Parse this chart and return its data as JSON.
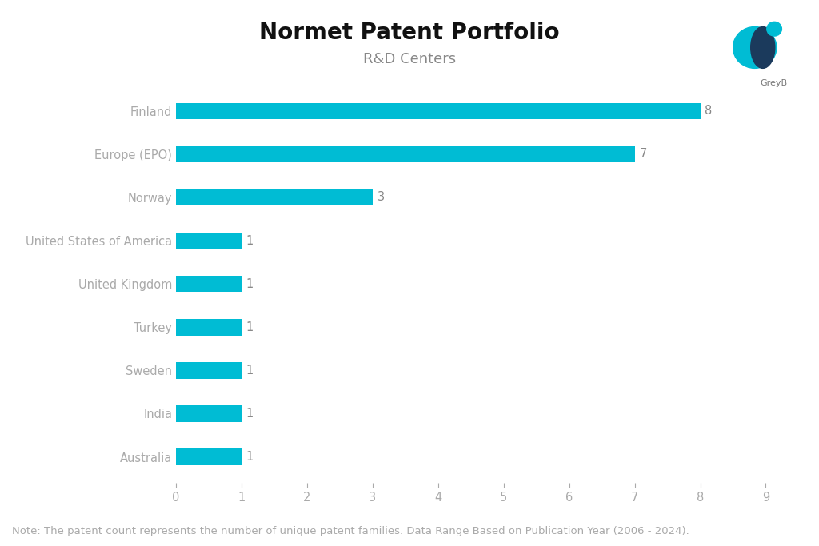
{
  "title": "Normet Patent Portfolio",
  "subtitle": "R&D Centers",
  "categories": [
    "Finland",
    "Europe (EPO)",
    "Norway",
    "United States of America",
    "United Kingdom",
    "Turkey",
    "Sweden",
    "India",
    "Australia"
  ],
  "values": [
    8,
    7,
    3,
    1,
    1,
    1,
    1,
    1,
    1
  ],
  "bar_color": "#00BCD4",
  "label_color": "#aaaaaa",
  "title_color": "#111111",
  "subtitle_color": "#888888",
  "note_color": "#aaaaaa",
  "value_color": "#888888",
  "tick_color": "#aaaaaa",
  "xlim": [
    0,
    9
  ],
  "xticks": [
    0,
    1,
    2,
    3,
    4,
    5,
    6,
    7,
    8,
    9
  ],
  "note": "Note: The patent count represents the number of unique patent families. Data Range Based on Publication Year (2006 - 2024).",
  "background_color": "#ffffff",
  "bar_height": 0.38,
  "title_fontsize": 20,
  "subtitle_fontsize": 13,
  "label_fontsize": 10.5,
  "value_fontsize": 10.5,
  "tick_fontsize": 10.5,
  "note_fontsize": 9.5
}
